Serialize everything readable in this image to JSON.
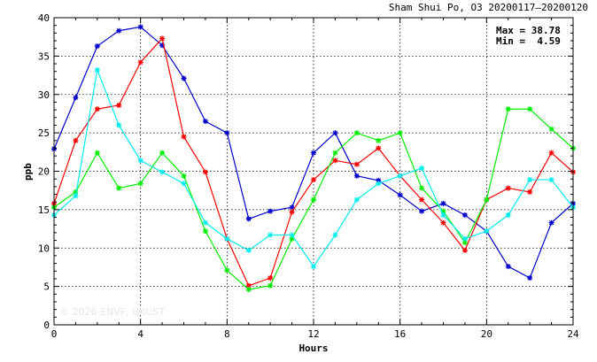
{
  "chart_data": {
    "type": "line",
    "title": "Sham Shui Po, O3 20200117–20200120",
    "xlabel": "Hours",
    "ylabel": "ppb",
    "xlim": [
      0,
      24
    ],
    "ylim": [
      0,
      40
    ],
    "xticks": [
      0,
      4,
      8,
      12,
      16,
      20,
      24
    ],
    "yticks": [
      0,
      5,
      10,
      15,
      20,
      25,
      30,
      35,
      40
    ],
    "grid": true,
    "stats": {
      "max_label": "Max = 38.78",
      "min_label": "Min =  4.59"
    },
    "watermark": "© 2026  ENVF, HKUST",
    "x": [
      0,
      1,
      2,
      3,
      4,
      5,
      6,
      7,
      8,
      9,
      10,
      11,
      12,
      13,
      14,
      15,
      16,
      17,
      18,
      19,
      20,
      21,
      22,
      23,
      24
    ],
    "series": [
      {
        "color": "#0000cc",
        "values": [
          22.9,
          29.6,
          36.3,
          38.3,
          38.8,
          36.4,
          32.1,
          26.5,
          25.0,
          13.8,
          14.8,
          15.3,
          22.4,
          25.0,
          19.4,
          18.8,
          16.9,
          14.8,
          15.8,
          14.3,
          12.2,
          7.6,
          6.1,
          13.3,
          15.8
        ]
      },
      {
        "color": "#ff0000",
        "values": [
          15.8,
          24.0,
          28.1,
          28.6,
          34.2,
          37.3,
          24.5,
          19.9,
          11.2,
          5.1,
          6.1,
          14.7,
          18.9,
          21.4,
          20.9,
          23.0,
          19.4,
          16.3,
          13.3,
          9.7,
          16.3,
          17.8,
          17.3,
          22.4,
          19.9
        ]
      },
      {
        "color": "#00ee00",
        "values": [
          15.3,
          17.3,
          22.4,
          17.8,
          18.4,
          22.4,
          19.4,
          12.2,
          7.1,
          4.6,
          5.1,
          11.2,
          16.3,
          22.4,
          25.0,
          24.0,
          25.0,
          17.8,
          14.8,
          10.7,
          16.3,
          28.1,
          28.1,
          25.5,
          23.0
        ]
      },
      {
        "color": "#00eeee",
        "values": [
          14.3,
          16.8,
          33.2,
          26.0,
          21.4,
          19.9,
          18.4,
          13.3,
          11.2,
          9.7,
          11.7,
          11.7,
          7.6,
          11.7,
          16.3,
          18.4,
          19.4,
          20.4,
          14.3,
          11.2,
          12.2,
          14.3,
          18.9,
          18.9,
          15.3
        ]
      }
    ]
  }
}
